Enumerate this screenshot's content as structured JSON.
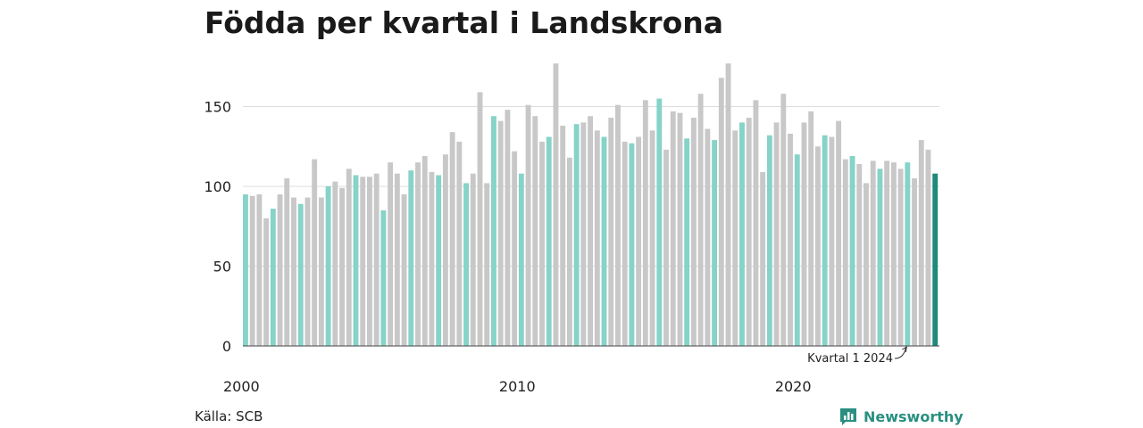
{
  "colors": {
    "q1": "#86d3c8",
    "other": "#c8c8c8",
    "latest": "#1c8a7c",
    "grid": "#dddddd",
    "axis": "#444444",
    "brand": "#2a8f80"
  },
  "chart_data": {
    "type": "bar",
    "title": "Födda per kvartal i Landskrona",
    "xlabel": "",
    "ylabel": "",
    "ylim": [
      0,
      180
    ],
    "yticks": [
      0,
      50,
      100,
      150
    ],
    "xticks": [
      "2000",
      "2010",
      "2020"
    ],
    "grid": true,
    "legend": "none",
    "start_year": 2000,
    "values": [
      95,
      94,
      95,
      80,
      86,
      95,
      105,
      93,
      89,
      93,
      117,
      93,
      100,
      103,
      99,
      111,
      107,
      106,
      106,
      108,
      85,
      115,
      108,
      95,
      110,
      115,
      119,
      109,
      107,
      120,
      134,
      128,
      102,
      108,
      159,
      102,
      144,
      141,
      148,
      122,
      108,
      151,
      144,
      128,
      131,
      177,
      138,
      118,
      139,
      140,
      144,
      135,
      131,
      143,
      151,
      128,
      127,
      131,
      154,
      135,
      155,
      123,
      147,
      146,
      130,
      143,
      158,
      136,
      129,
      168,
      177,
      135,
      140,
      143,
      154,
      109,
      132,
      140,
      158,
      133,
      120,
      140,
      147,
      125,
      132,
      131,
      141,
      117,
      119,
      114,
      102,
      116,
      111,
      116,
      115,
      111,
      115,
      105,
      129,
      123,
      108
    ],
    "annotation": {
      "text": "Kvartal 1 2024",
      "index": 96
    }
  },
  "source": "Källa: SCB",
  "brand": {
    "name": "Newsworthy"
  }
}
